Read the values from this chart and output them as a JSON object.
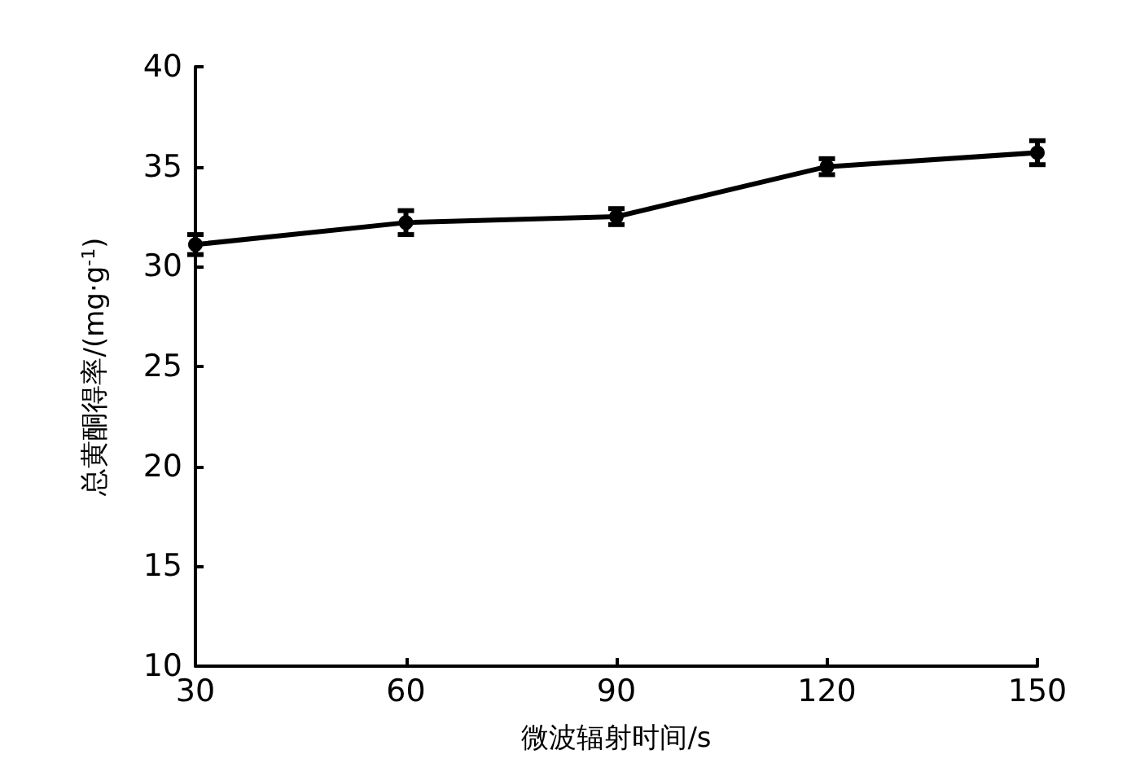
{
  "chart_data": {
    "type": "line",
    "xlabel": "微波辐射时间/s",
    "ylabel": "总黄酮得率/(mg·g$^{-1}$)",
    "x": [
      30,
      60,
      90,
      120,
      150
    ],
    "series": [
      {
        "color": "#000000",
        "values": [
          31.1,
          32.2,
          32.5,
          35.0,
          35.7
        ],
        "errors": [
          0.5,
          0.6,
          0.4,
          0.4,
          0.6
        ]
      }
    ],
    "xlim": [
      30,
      150
    ],
    "xticks": [
      30,
      60,
      90,
      120,
      150
    ],
    "ylim": [
      10,
      40
    ],
    "yticks": [
      10,
      15,
      20,
      25,
      30,
      35,
      40
    ],
    "grid": false,
    "marker": "circle",
    "line_style": "solid"
  }
}
